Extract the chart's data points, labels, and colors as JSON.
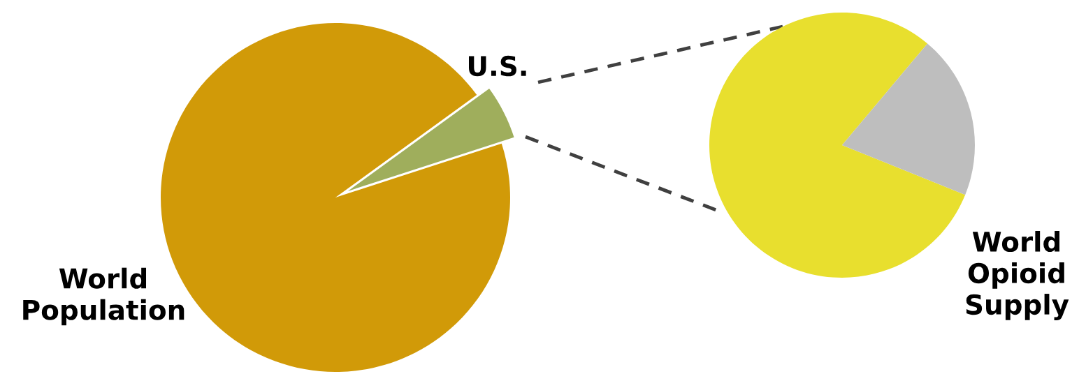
{
  "chart_data": [
    {
      "type": "pie",
      "title": "World Opioid Supply",
      "categories": [
        null,
        null
      ],
      "values": [
        80,
        20
      ],
      "colors": [
        "#e8df2e",
        "#bebebe"
      ]
    },
    {
      "type": "pie",
      "title": "World Population",
      "categories": [
        null,
        "U.S."
      ],
      "values": [
        95,
        5
      ],
      "colors": [
        "#d19a08",
        "#9fae5c"
      ]
    }
  ]
}
